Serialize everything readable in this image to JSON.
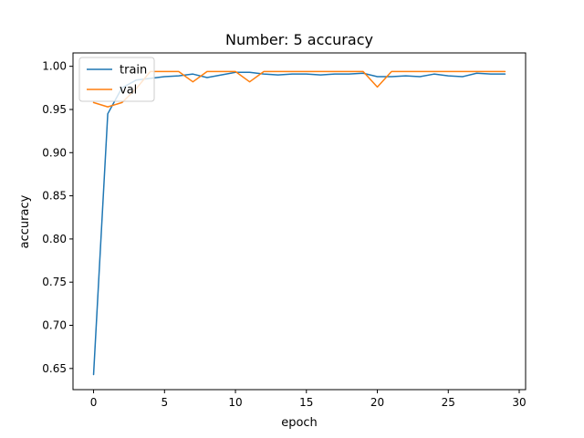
{
  "chart_data": {
    "type": "line",
    "title": "Number: 5 accuracy",
    "xlabel": "epoch",
    "ylabel": "accuracy",
    "xlim": [
      -1.45,
      30.45
    ],
    "ylim": [
      0.6255,
      1.0155
    ],
    "xticks": [
      0,
      5,
      10,
      15,
      20,
      25,
      30
    ],
    "xtick_labels": [
      "0",
      "5",
      "10",
      "15",
      "20",
      "25",
      "30"
    ],
    "yticks": [
      0.65,
      0.7,
      0.75,
      0.8,
      0.85,
      0.9,
      0.95,
      1.0
    ],
    "ytick_labels": [
      "0.65",
      "0.70",
      "0.75",
      "0.80",
      "0.85",
      "0.90",
      "0.95",
      "1.00"
    ],
    "grid": false,
    "legend_position": "top-left",
    "x": [
      0,
      1,
      2,
      3,
      4,
      5,
      6,
      7,
      8,
      9,
      10,
      11,
      12,
      13,
      14,
      15,
      16,
      17,
      18,
      19,
      20,
      21,
      22,
      23,
      24,
      25,
      26,
      27,
      28,
      29
    ],
    "series": [
      {
        "name": "train",
        "color": "#1f77b4",
        "values": [
          0.643,
          0.945,
          0.975,
          0.984,
          0.986,
          0.988,
          0.989,
          0.991,
          0.987,
          0.99,
          0.993,
          0.993,
          0.991,
          0.99,
          0.991,
          0.991,
          0.99,
          0.991,
          0.991,
          0.992,
          0.988,
          0.988,
          0.989,
          0.988,
          0.991,
          0.989,
          0.988,
          0.992,
          0.991,
          0.991
        ]
      },
      {
        "name": "val",
        "color": "#ff7f0e",
        "values": [
          0.958,
          0.953,
          0.958,
          0.974,
          0.994,
          0.994,
          0.994,
          0.982,
          0.994,
          0.994,
          0.994,
          0.982,
          0.994,
          0.994,
          0.994,
          0.994,
          0.994,
          0.994,
          0.994,
          0.994,
          0.976,
          0.994,
          0.994,
          0.994,
          0.994,
          0.994,
          0.994,
          0.994,
          0.994,
          0.994
        ]
      }
    ]
  }
}
